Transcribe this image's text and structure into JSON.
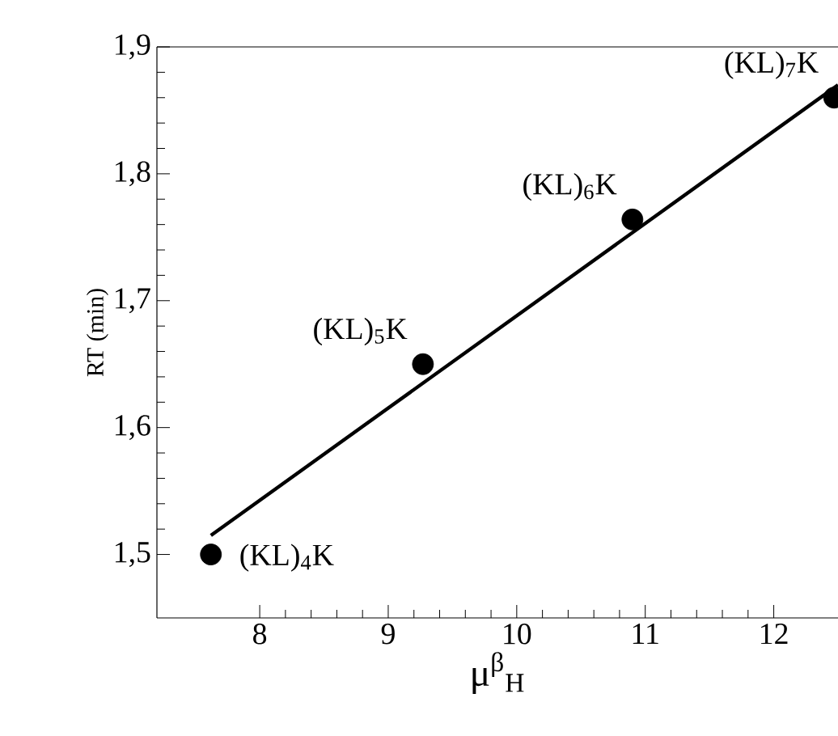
{
  "chart_data": {
    "type": "scatter",
    "xlabel": "μ$^{β}$$_{H}$",
    "ylabel": "RT (min)",
    "xlim": [
      7.2,
      12.5
    ],
    "ylim": [
      1.45,
      1.9
    ],
    "xticks": [
      8,
      9,
      10,
      11,
      12
    ],
    "yticks": [
      {
        "value": 1.5,
        "label": "1,5"
      },
      {
        "value": 1.6,
        "label": "1,6"
      },
      {
        "value": 1.7,
        "label": "1,7"
      },
      {
        "value": 1.8,
        "label": "1,8"
      },
      {
        "value": 1.9,
        "label": "1,9"
      }
    ],
    "series": [
      {
        "color": "#000000",
        "marker": "circle",
        "x": [
          7.62,
          9.27,
          10.9,
          12.47
        ],
        "values": [
          1.5,
          1.65,
          1.764,
          1.86
        ]
      },
      {
        "type": "line",
        "color": "#000000",
        "marker": "none",
        "x": [
          7.62,
          12.5
        ],
        "values": [
          1.515,
          1.87
        ]
      }
    ],
    "annotations": [
      {
        "text": "(KL)$_{4}$K",
        "x": 7.62,
        "y": 1.5
      },
      {
        "text": "(KL)$_{5}$K",
        "x": 9.27,
        "y": 1.65
      },
      {
        "text": "(KL)$_{6}$K",
        "x": 10.9,
        "y": 1.764
      },
      {
        "text": "(KL)$_{7}$K",
        "x": 12.47,
        "y": 1.86
      }
    ]
  }
}
